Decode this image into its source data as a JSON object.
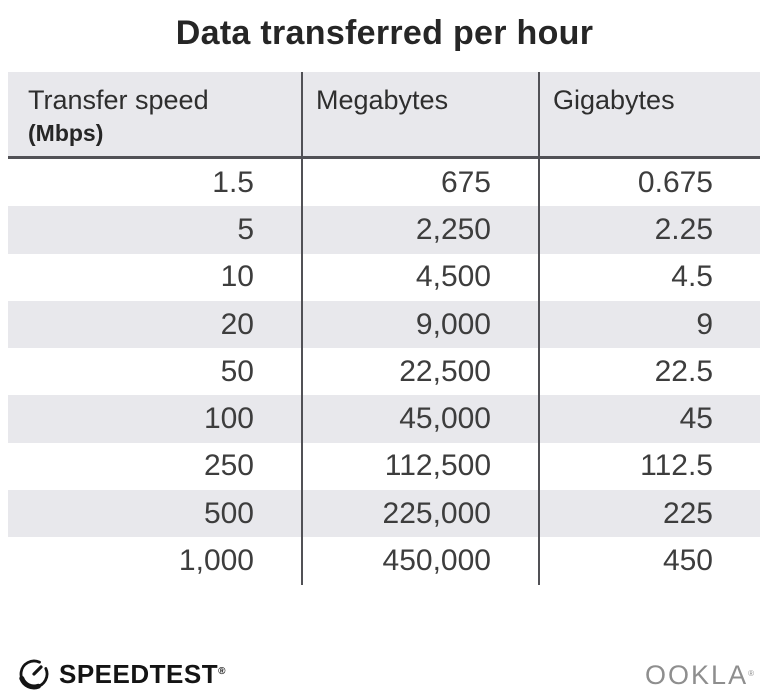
{
  "title": "Data transferred per hour",
  "chart_data": {
    "type": "table",
    "title": "Data transferred per hour",
    "columns": [
      "Transfer speed (Mbps)",
      "Megabytes",
      "Gigabytes"
    ],
    "rows": [
      [
        1.5,
        675,
        0.675
      ],
      [
        5,
        2250,
        2.25
      ],
      [
        10,
        4500,
        4.5
      ],
      [
        20,
        9000,
        9
      ],
      [
        50,
        22500,
        22.5
      ],
      [
        100,
        45000,
        45
      ],
      [
        250,
        112500,
        112.5
      ],
      [
        500,
        225000,
        225
      ],
      [
        1000,
        450000,
        450
      ]
    ],
    "layout_hints": {
      "alternating_row_shading": true,
      "column_dividers": true,
      "values_right_aligned": true
    }
  },
  "table": {
    "columns": [
      {
        "label": "Transfer speed",
        "sub": "(Mbps)"
      },
      {
        "label": "Megabytes",
        "sub": ""
      },
      {
        "label": "Gigabytes",
        "sub": ""
      }
    ],
    "rows": [
      [
        "1.5",
        "675",
        "0.675"
      ],
      [
        "5",
        "2,250",
        "2.25"
      ],
      [
        "10",
        "4,500",
        "4.5"
      ],
      [
        "20",
        "9,000",
        "9"
      ],
      [
        "50",
        "22,500",
        "22.5"
      ],
      [
        "100",
        "45,000",
        "45"
      ],
      [
        "250",
        "112,500",
        "112.5"
      ],
      [
        "500",
        "225,000",
        "225"
      ],
      [
        "1,000",
        "450,000",
        "450"
      ]
    ]
  },
  "footer": {
    "speedtest_label": "SPEEDTEST",
    "speedtest_trademark": "®",
    "ookla_label": "OOKLA",
    "ookla_trademark": "®"
  },
  "icons": {
    "speedtest_gauge": "gauge-with-needle"
  },
  "colors": {
    "background": "#ffffff",
    "header_bg": "#e8e8ec",
    "row_alt_bg": "#e8e8ec",
    "divider": "#515156",
    "title_text": "#262626",
    "cell_text": "#3d3d3d",
    "speedtest_black": "#141414",
    "ookla_gray": "#8e8e8e"
  }
}
